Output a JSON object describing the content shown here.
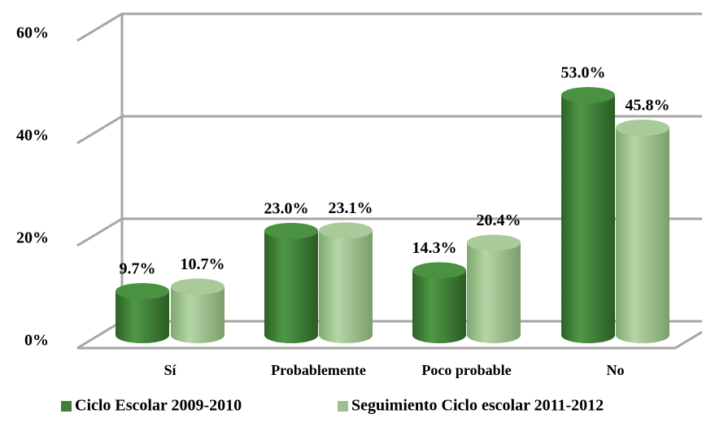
{
  "chart_data": {
    "type": "bar3d",
    "categories": [
      "Sí",
      "Probablemente",
      "Poco probable",
      "No"
    ],
    "series": [
      {
        "name": "Ciclo Escolar 2009-2010",
        "color": "#3d7f35",
        "values": [
          9.7,
          23.0,
          14.3,
          53.0
        ],
        "value_labels": [
          "9.7%",
          "23.0%",
          "14.3%",
          "53.0%"
        ]
      },
      {
        "name": "Seguimiento Ciclo escolar 2011-2012",
        "color": "#9cc18c",
        "values": [
          10.7,
          23.1,
          20.4,
          45.8
        ],
        "value_labels": [
          "10.7%",
          "23.1%",
          "20.4%",
          "45.8%"
        ]
      }
    ],
    "ylim": [
      0,
      60
    ],
    "yticks": [
      {
        "value": 0,
        "label": "0%"
      },
      {
        "value": 20,
        "label": "20%"
      },
      {
        "value": 40,
        "label": "40%"
      },
      {
        "value": 60,
        "label": "60%"
      }
    ],
    "grid": true,
    "legend": "bottom"
  }
}
